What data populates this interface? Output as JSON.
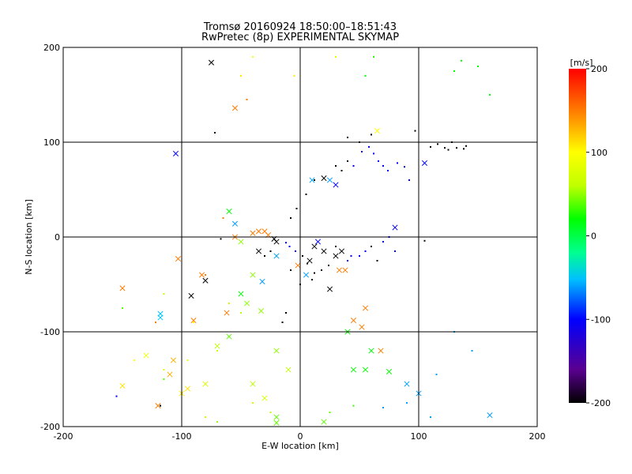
{
  "chart_data": {
    "type": "scatter",
    "title": "Tromsø 20160924 18:50:00–18:51:43",
    "subtitle": "RwPretec (8p) EXPERIMENTAL SKYMAP",
    "xlabel": "E-W location [km]",
    "ylabel": "N-S location [km]",
    "xlim": [
      -200,
      200
    ],
    "ylim": [
      -200,
      200
    ],
    "x_ticks": [
      -200,
      -100,
      0,
      100,
      200
    ],
    "y_ticks": [
      -200,
      -100,
      0,
      100,
      200
    ],
    "grid": true,
    "colorbar": {
      "label": "[m/s]",
      "range": [
        -200,
        200
      ],
      "ticks": [
        200,
        100,
        0,
        -100,
        -200
      ],
      "colormap": [
        "#000000",
        "#5a0090",
        "#0000ff",
        "#00c0ff",
        "#00ff90",
        "#00ff00",
        "#c0ff00",
        "#ffff00",
        "#ff8000",
        "#ff0000"
      ]
    },
    "series": [
      {
        "marker": "cross",
        "points": [
          [
            -55,
            136,
            150
          ],
          [
            -75,
            184,
            -200
          ],
          [
            -105,
            88,
            -100
          ],
          [
            -27,
            2,
            150
          ],
          [
            -35,
            6,
            150
          ],
          [
            -40,
            4,
            150
          ],
          [
            -30,
            6,
            150
          ],
          [
            -55,
            0,
            150
          ],
          [
            -103,
            -23,
            150
          ],
          [
            -92,
            -62,
            -200
          ],
          [
            -90,
            -88,
            150
          ],
          [
            -83,
            -40,
            150
          ],
          [
            -80,
            -46,
            -200
          ],
          [
            -62,
            -80,
            150
          ],
          [
            -50,
            -60,
            20
          ],
          [
            -150,
            -54,
            150
          ],
          [
            -118,
            -81,
            -50
          ],
          [
            -118,
            -85,
            -50
          ],
          [
            -110,
            -145,
            130
          ],
          [
            -107,
            -130,
            130
          ],
          [
            -150,
            -157,
            110
          ],
          [
            -100,
            -165,
            110
          ],
          [
            -95,
            -160,
            110
          ],
          [
            -45,
            -70,
            50
          ],
          [
            -33,
            -78,
            50
          ],
          [
            -40,
            -40,
            50
          ],
          [
            -32,
            -47,
            -60
          ],
          [
            -20,
            -20,
            -60
          ],
          [
            -35,
            -15,
            -200
          ],
          [
            -60,
            27,
            20
          ],
          [
            -55,
            14,
            -60
          ],
          [
            -50,
            -5,
            50
          ],
          [
            -20,
            -5,
            -200
          ],
          [
            -2,
            -30,
            150
          ],
          [
            8,
            -25,
            -200
          ],
          [
            12,
            -10,
            -200
          ],
          [
            20,
            -15,
            -200
          ],
          [
            30,
            -20,
            -200
          ],
          [
            35,
            -15,
            -200
          ],
          [
            33,
            -35,
            150
          ],
          [
            38,
            -35,
            150
          ],
          [
            25,
            -55,
            -200
          ],
          [
            -22,
            -2,
            -200
          ],
          [
            5,
            -40,
            -60
          ],
          [
            15,
            -5,
            -100
          ],
          [
            20,
            62,
            -200
          ],
          [
            10,
            60,
            -60
          ],
          [
            25,
            60,
            -60
          ],
          [
            30,
            55,
            -100
          ],
          [
            65,
            112,
            100
          ],
          [
            105,
            78,
            -100
          ],
          [
            80,
            10,
            -100
          ],
          [
            55,
            -75,
            150
          ],
          [
            52,
            -95,
            150
          ],
          [
            45,
            -88,
            150
          ],
          [
            40,
            -100,
            20
          ],
          [
            68,
            -120,
            150
          ],
          [
            75,
            -142,
            20
          ],
          [
            90,
            -155,
            -60
          ],
          [
            60,
            -120,
            20
          ],
          [
            55,
            -140,
            20
          ],
          [
            45,
            -140,
            20
          ],
          [
            -60,
            -105,
            40
          ],
          [
            -70,
            -115,
            60
          ],
          [
            -80,
            -155,
            80
          ],
          [
            -20,
            -120,
            50
          ],
          [
            -10,
            -140,
            60
          ],
          [
            -30,
            -170,
            70
          ],
          [
            -40,
            -155,
            60
          ],
          [
            160,
            -188,
            -60
          ],
          [
            100,
            -165,
            -60
          ],
          [
            -20,
            -190,
            40
          ],
          [
            -20,
            -196,
            40
          ],
          [
            20,
            -195,
            40
          ],
          [
            -130,
            -125,
            90
          ],
          [
            -120,
            -178,
            150
          ]
        ]
      },
      {
        "marker": "dot",
        "points": [
          [
            -118,
            -178,
            -200
          ],
          [
            -72,
            110,
            -200
          ],
          [
            -67,
            -2,
            -200
          ],
          [
            -30,
            -20,
            -200
          ],
          [
            -25,
            -15,
            -200
          ],
          [
            97,
            112,
            -200
          ],
          [
            105,
            -4,
            -200
          ],
          [
            116,
            98,
            -200
          ],
          [
            122,
            94,
            -200
          ],
          [
            128,
            100,
            -200
          ],
          [
            138,
            93,
            -200
          ],
          [
            132,
            94,
            -200
          ],
          [
            125,
            92,
            -200
          ],
          [
            110,
            95,
            -200
          ],
          [
            60,
            108,
            -200
          ],
          [
            140,
            96,
            -200
          ],
          [
            50,
            100,
            -200
          ],
          [
            40,
            105,
            -200
          ],
          [
            -45,
            145,
            150
          ],
          [
            -65,
            20,
            150
          ],
          [
            -80,
            -40,
            150
          ],
          [
            -122,
            -90,
            150
          ],
          [
            130,
            175,
            20
          ],
          [
            150,
            180,
            20
          ],
          [
            160,
            150,
            20
          ],
          [
            136,
            186,
            20
          ],
          [
            -150,
            -75,
            40
          ],
          [
            -155,
            -168,
            -100
          ],
          [
            -115,
            -150,
            40
          ],
          [
            -50,
            170,
            110
          ],
          [
            -5,
            170,
            110
          ],
          [
            -40,
            190,
            100
          ],
          [
            30,
            190,
            80
          ],
          [
            62,
            190,
            30
          ],
          [
            55,
            170,
            20
          ],
          [
            -60,
            -70,
            60
          ],
          [
            -70,
            -120,
            70
          ],
          [
            -90,
            -90,
            90
          ],
          [
            -140,
            -130,
            100
          ],
          [
            -95,
            -130,
            90
          ],
          [
            -50,
            -80,
            60
          ],
          [
            -12,
            -80,
            -200
          ],
          [
            -15,
            -90,
            -200
          ],
          [
            0,
            -50,
            -200
          ],
          [
            10,
            -45,
            -200
          ],
          [
            -8,
            -35,
            -200
          ],
          [
            50,
            -20,
            -100
          ],
          [
            55,
            -15,
            -100
          ],
          [
            60,
            -10,
            -200
          ],
          [
            65,
            -25,
            -200
          ],
          [
            70,
            -5,
            -100
          ],
          [
            75,
            0,
            -100
          ],
          [
            80,
            -15,
            -100
          ],
          [
            40,
            -25,
            -100
          ],
          [
            43,
            -20,
            -100
          ],
          [
            30,
            -10,
            -200
          ],
          [
            24,
            -30,
            -200
          ],
          [
            18,
            -35,
            -200
          ],
          [
            12,
            -38,
            -200
          ],
          [
            6,
            -28,
            -200
          ],
          [
            2,
            -20,
            -200
          ],
          [
            -4,
            -15,
            -100
          ],
          [
            -9,
            -10,
            -100
          ],
          [
            -12,
            -6,
            -100
          ],
          [
            -8,
            20,
            -200
          ],
          [
            -3,
            30,
            -200
          ],
          [
            5,
            45,
            -200
          ],
          [
            12,
            60,
            -200
          ],
          [
            45,
            75,
            -100
          ],
          [
            52,
            90,
            -100
          ],
          [
            58,
            95,
            -100
          ],
          [
            62,
            88,
            -100
          ],
          [
            66,
            80,
            -100
          ],
          [
            70,
            75,
            -100
          ],
          [
            74,
            70,
            -100
          ],
          [
            82,
            78,
            -100
          ],
          [
            88,
            74,
            -100
          ],
          [
            92,
            60,
            -100
          ],
          [
            40,
            80,
            -200
          ],
          [
            35,
            70,
            -200
          ],
          [
            30,
            75,
            -200
          ],
          [
            -115,
            -140,
            80
          ],
          [
            -115,
            -60,
            60
          ],
          [
            115,
            -145,
            -60
          ],
          [
            130,
            -100,
            -60
          ],
          [
            145,
            -120,
            -60
          ],
          [
            -40,
            -175,
            70
          ],
          [
            -25,
            -185,
            60
          ],
          [
            25,
            -185,
            40
          ],
          [
            45,
            -178,
            30
          ],
          [
            70,
            -180,
            -60
          ],
          [
            90,
            -175,
            -60
          ],
          [
            110,
            -190,
            -60
          ],
          [
            -80,
            -190,
            60
          ],
          [
            -70,
            -195,
            50
          ]
        ]
      }
    ]
  }
}
